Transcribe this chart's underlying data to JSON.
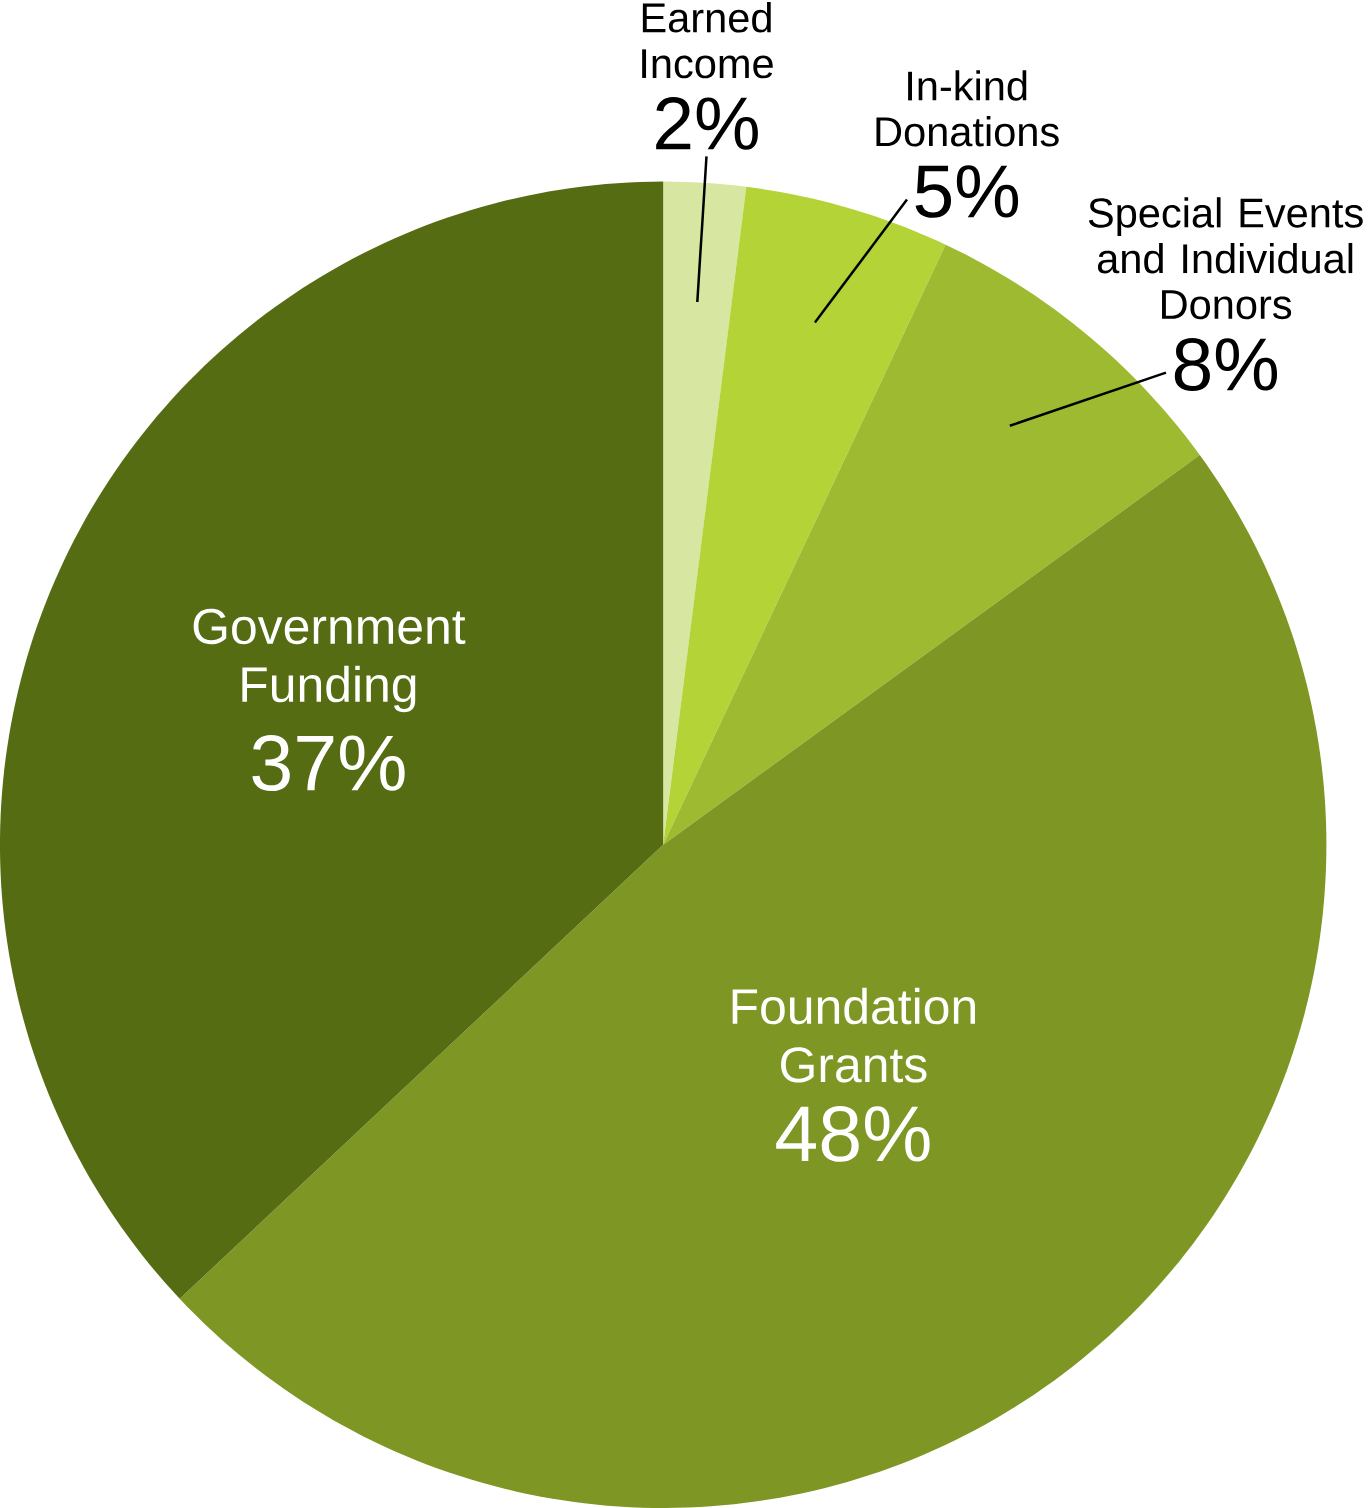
{
  "chart_data": {
    "type": "pie",
    "categories": [
      "Earned Income",
      "In-kind Donations",
      "Special Events and Individual Donors",
      "Foundation Grants",
      "Government Funding"
    ],
    "values": [
      2,
      5,
      8,
      48,
      37
    ],
    "value_labels": [
      "2%",
      "5%",
      "8%",
      "48%",
      "37%"
    ],
    "colors": [
      "#d7e6a0",
      "#b3d337",
      "#9dba30",
      "#7e9623",
      "#556c13"
    ]
  }
}
